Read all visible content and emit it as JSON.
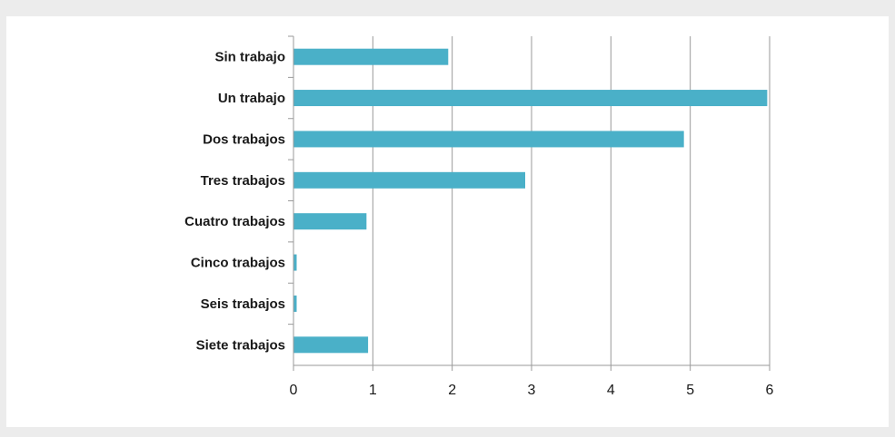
{
  "chart_data": {
    "type": "bar",
    "orientation": "horizontal",
    "categories": [
      "Sin trabajo",
      "Un trabajo",
      "Dos trabajos",
      "Tres trabajos",
      "Cuatro trabajos",
      "Cinco trabajos",
      "Seis trabajos",
      "Siete trabajos"
    ],
    "values": [
      1.95,
      5.97,
      4.92,
      2.92,
      0.92,
      0.04,
      0.04,
      0.94
    ],
    "title": "",
    "xlabel": "",
    "ylabel": "",
    "xlim": [
      0,
      6
    ],
    "xticks": [
      "0",
      "1",
      "2",
      "3",
      "4",
      "5",
      "6"
    ],
    "grid": "vertical",
    "legend": "none",
    "bar_color": "#4ab0c8",
    "grid_color": "#9a9a9a"
  }
}
